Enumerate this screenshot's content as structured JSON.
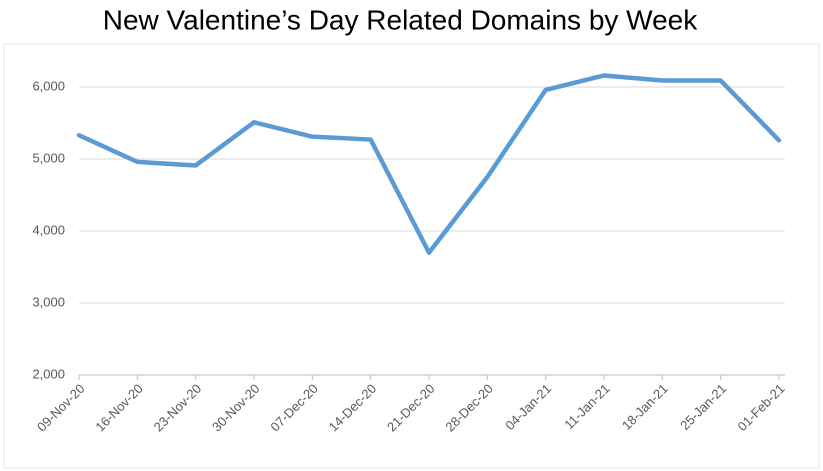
{
  "chart_data": {
    "type": "line",
    "title": "New Valentine’s Day Related Domains by Week",
    "categories": [
      "09-Nov-20",
      "16-Nov-20",
      "23-Nov-20",
      "30-Nov-20",
      "07-Dec-20",
      "14-Dec-20",
      "21-Dec-20",
      "28-Dec-20",
      "04-Jan-21",
      "11-Jan-21",
      "18-Jan-21",
      "25-Jan-21",
      "01-Feb-21"
    ],
    "values": [
      5330,
      4960,
      4910,
      5510,
      5310,
      5270,
      3700,
      4750,
      5960,
      6160,
      6090,
      6090,
      5260
    ],
    "color": "#5b9bd5",
    "ylim": [
      2000,
      6500
    ],
    "yticks": [
      {
        "value": 2000,
        "label": "2,000"
      },
      {
        "value": 3000,
        "label": "3,000"
      },
      {
        "value": 4000,
        "label": "4,000"
      },
      {
        "value": 5000,
        "label": "5,000"
      },
      {
        "value": 6000,
        "label": "6,000"
      }
    ],
    "grid": true
  }
}
